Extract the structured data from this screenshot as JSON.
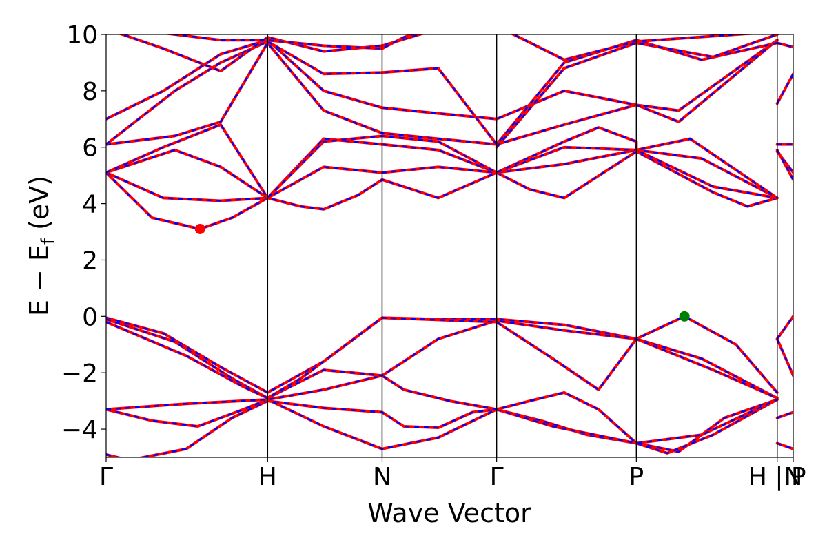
{
  "chart_data": {
    "type": "line",
    "xlabel": "Wave Vector",
    "ylabel_main": "E − E",
    "ylabel_sub": "f",
    "ylabel_unit": "(eV)",
    "ylim": [
      -5,
      10
    ],
    "yticks": [
      {
        "value": -4,
        "label": "−4"
      },
      {
        "value": -2,
        "label": "−2"
      },
      {
        "value": 0,
        "label": "0"
      },
      {
        "value": 2,
        "label": "2"
      },
      {
        "value": 4,
        "label": "4"
      },
      {
        "value": 6,
        "label": "6"
      },
      {
        "value": 8,
        "label": "8"
      },
      {
        "value": 10,
        "label": "10"
      }
    ],
    "xlim": [
      0,
      6
    ],
    "kpoints": [
      {
        "x": 0,
        "label": "Γ"
      },
      {
        "x": 1.41,
        "label": "H"
      },
      {
        "x": 2.41,
        "label": "N"
      },
      {
        "x": 3.41,
        "label": "Γ"
      },
      {
        "x": 4.63,
        "label": "P"
      },
      {
        "x": 5.86,
        "label": "H | P"
      },
      {
        "x": 6,
        "label": "N"
      }
    ],
    "segment_breaks": [
      5.86
    ],
    "series_colors": {
      "calc_a": "#ff0000",
      "calc_b": "#0000ff"
    },
    "bands": [
      [
        [
          0,
          -4.9
        ],
        [
          0.2,
          -5.1
        ],
        [
          0.7,
          -4.7
        ],
        [
          1.1,
          -3.6
        ],
        [
          1.41,
          -3.0
        ],
        [
          1.9,
          -3.25
        ],
        [
          2.41,
          -3.4
        ],
        [
          2.41,
          -3.4
        ],
        [
          2.6,
          -3.9
        ],
        [
          2.9,
          -3.95
        ],
        [
          3.2,
          -3.4
        ],
        [
          3.41,
          -3.3
        ],
        [
          3.41,
          -3.3
        ],
        [
          3.8,
          -3.7
        ],
        [
          4.2,
          -4.2
        ],
        [
          4.63,
          -4.5
        ],
        [
          4.63,
          -4.5
        ],
        [
          5.0,
          -4.8
        ],
        [
          5.4,
          -3.6
        ],
        [
          5.86,
          -2.95
        ],
        [
          5.86,
          -3.6
        ],
        [
          6,
          -3.4
        ]
      ],
      [
        [
          0,
          -3.3
        ],
        [
          0.4,
          -3.7
        ],
        [
          0.8,
          -3.9
        ],
        [
          1.2,
          -3.3
        ],
        [
          1.41,
          -2.95
        ],
        [
          1.9,
          -3.9
        ],
        [
          2.41,
          -4.7
        ],
        [
          2.41,
          -4.7
        ],
        [
          2.9,
          -4.3
        ],
        [
          3.41,
          -3.3
        ],
        [
          3.41,
          -3.3
        ],
        [
          3.9,
          -3.9
        ],
        [
          4.63,
          -4.5
        ],
        [
          4.63,
          -4.5
        ],
        [
          4.9,
          -4.85
        ],
        [
          5.3,
          -4.2
        ],
        [
          5.86,
          -2.95
        ],
        [
          5.86,
          -4.5
        ],
        [
          6,
          -4.7
        ]
      ],
      [
        [
          0,
          -3.3
        ],
        [
          0.7,
          -3.1
        ],
        [
          1.41,
          -2.95
        ],
        [
          1.9,
          -2.6
        ],
        [
          2.41,
          -2.1
        ],
        [
          2.41,
          -2.1
        ],
        [
          2.6,
          -2.6
        ],
        [
          3.0,
          -3.0
        ],
        [
          3.41,
          -3.3
        ],
        [
          3.41,
          -3.3
        ],
        [
          3.7,
          -3.0
        ],
        [
          4.0,
          -2.7
        ],
        [
          4.3,
          -3.3
        ],
        [
          4.63,
          -4.5
        ],
        [
          4.63,
          -4.5
        ],
        [
          5.2,
          -4.2
        ],
        [
          5.86,
          -2.95
        ],
        [
          5.86,
          -0.8
        ],
        [
          6,
          -2.1
        ]
      ],
      [
        [
          0,
          -0.05
        ],
        [
          0.5,
          -0.6
        ],
        [
          1.0,
          -1.8
        ],
        [
          1.41,
          -2.7
        ],
        [
          1.9,
          -1.6
        ],
        [
          2.41,
          -0.05
        ],
        [
          2.41,
          -0.05
        ],
        [
          2.9,
          -0.1
        ],
        [
          3.41,
          -0.1
        ],
        [
          3.41,
          -0.1
        ],
        [
          4.0,
          -0.3
        ],
        [
          4.63,
          -0.8
        ],
        [
          4.63,
          -0.8
        ],
        [
          5.05,
          0.0
        ],
        [
          5.5,
          -1.0
        ],
        [
          5.86,
          -2.7
        ],
        [
          5.86,
          -0.8
        ],
        [
          6,
          0.0
        ]
      ],
      [
        [
          0,
          -0.1
        ],
        [
          0.6,
          -0.9
        ],
        [
          1.1,
          -2.2
        ],
        [
          1.41,
          -2.9
        ],
        [
          1.9,
          -1.9
        ],
        [
          2.41,
          -2.1
        ],
        [
          2.41,
          -2.1
        ],
        [
          2.9,
          -0.8
        ],
        [
          3.41,
          -0.15
        ],
        [
          3.41,
          -0.15
        ],
        [
          4.0,
          -0.5
        ],
        [
          4.63,
          -0.8
        ],
        [
          4.63,
          -0.8
        ],
        [
          5.2,
          -1.5
        ],
        [
          5.86,
          -2.9
        ]
      ],
      [
        [
          0,
          -0.2
        ],
        [
          0.7,
          -1.4
        ],
        [
          1.2,
          -2.5
        ],
        [
          1.41,
          -2.9
        ],
        [
          1.7,
          -2.2
        ],
        [
          2.41,
          -0.05
        ],
        [
          2.41,
          -0.05
        ],
        [
          3.41,
          -0.2
        ],
        [
          3.41,
          -0.2
        ],
        [
          3.9,
          -1.5
        ],
        [
          4.3,
          -2.6
        ],
        [
          4.63,
          -0.8
        ],
        [
          4.63,
          -0.8
        ],
        [
          5.3,
          -1.9
        ],
        [
          5.86,
          -2.9
        ]
      ],
      [
        [
          0,
          5.1
        ],
        [
          0.4,
          3.5
        ],
        [
          0.82,
          3.1
        ],
        [
          1.1,
          3.5
        ],
        [
          1.41,
          4.2
        ],
        [
          1.7,
          3.9
        ],
        [
          1.9,
          3.8
        ],
        [
          2.2,
          4.3
        ],
        [
          2.41,
          4.85
        ],
        [
          2.41,
          4.85
        ],
        [
          2.9,
          4.2
        ],
        [
          3.41,
          5.1
        ],
        [
          3.41,
          5.1
        ],
        [
          3.7,
          4.5
        ],
        [
          4.0,
          4.2
        ],
        [
          4.63,
          5.85
        ],
        [
          4.63,
          5.85
        ],
        [
          5.3,
          4.4
        ],
        [
          5.6,
          3.9
        ],
        [
          5.86,
          4.2
        ]
      ],
      [
        [
          0,
          5.1
        ],
        [
          0.5,
          4.2
        ],
        [
          1.0,
          4.1
        ],
        [
          1.41,
          4.2
        ],
        [
          1.9,
          5.3
        ],
        [
          2.41,
          5.1
        ],
        [
          2.41,
          5.1
        ],
        [
          2.9,
          5.3
        ],
        [
          3.41,
          5.1
        ],
        [
          3.41,
          5.1
        ],
        [
          4.0,
          5.4
        ],
        [
          4.63,
          5.9
        ],
        [
          4.63,
          5.9
        ],
        [
          5.3,
          4.6
        ],
        [
          5.86,
          4.2
        ]
      ],
      [
        [
          0,
          5.1
        ],
        [
          0.6,
          5.9
        ],
        [
          1.0,
          5.3
        ],
        [
          1.41,
          4.2
        ],
        [
          1.9,
          6.3
        ],
        [
          2.41,
          6.1
        ],
        [
          2.41,
          6.1
        ],
        [
          2.9,
          5.9
        ],
        [
          3.41,
          5.1
        ],
        [
          3.41,
          5.1
        ],
        [
          4.0,
          6.0
        ],
        [
          4.63,
          5.9
        ],
        [
          4.63,
          5.9
        ],
        [
          5.2,
          5.6
        ],
        [
          5.86,
          4.2
        ],
        [
          5.86,
          5.85
        ],
        [
          6,
          5.1
        ]
      ],
      [
        [
          0,
          5.1
        ],
        [
          0.5,
          6.0
        ],
        [
          1.0,
          6.8
        ],
        [
          1.41,
          4.2
        ],
        [
          1.9,
          6.2
        ],
        [
          2.41,
          6.4
        ],
        [
          2.41,
          6.4
        ],
        [
          2.9,
          6.2
        ],
        [
          3.41,
          5.1
        ],
        [
          3.41,
          5.1
        ],
        [
          4.0,
          6.2
        ],
        [
          4.3,
          6.7
        ],
        [
          4.63,
          6.2
        ],
        [
          4.63,
          5.9
        ],
        [
          5.1,
          6.3
        ],
        [
          5.86,
          4.2
        ],
        [
          5.86,
          5.9
        ],
        [
          6,
          4.85
        ]
      ],
      [
        [
          0,
          6.1
        ],
        [
          0.6,
          6.4
        ],
        [
          1.0,
          6.9
        ],
        [
          1.41,
          9.7
        ],
        [
          1.9,
          7.3
        ],
        [
          2.41,
          6.5
        ],
        [
          2.41,
          6.5
        ],
        [
          2.9,
          6.3
        ],
        [
          3.41,
          6.1
        ],
        [
          3.41,
          6.1
        ],
        [
          4.0,
          6.8
        ],
        [
          4.63,
          7.5
        ],
        [
          4.63,
          7.5
        ],
        [
          5.0,
          7.3
        ],
        [
          5.86,
          9.8
        ],
        [
          5.86,
          6.1
        ],
        [
          6,
          6.1
        ]
      ],
      [
        [
          0,
          7.0
        ],
        [
          0.5,
          8.0
        ],
        [
          1.0,
          9.3
        ],
        [
          1.41,
          9.8
        ],
        [
          1.9,
          8.0
        ],
        [
          2.41,
          7.4
        ],
        [
          2.41,
          7.4
        ],
        [
          2.9,
          7.2
        ],
        [
          3.41,
          7.0
        ],
        [
          3.41,
          7.0
        ],
        [
          4.0,
          8.0
        ],
        [
          4.63,
          7.5
        ],
        [
          4.63,
          7.5
        ],
        [
          5.0,
          6.9
        ],
        [
          5.86,
          9.8
        ],
        [
          5.86,
          7.55
        ],
        [
          6,
          8.6
        ]
      ],
      [
        [
          0,
          6.1
        ],
        [
          0.6,
          8.0
        ],
        [
          1.0,
          9.0
        ],
        [
          1.41,
          9.75
        ],
        [
          1.9,
          8.6
        ],
        [
          2.41,
          8.65
        ],
        [
          2.41,
          8.65
        ],
        [
          2.9,
          8.8
        ],
        [
          3.41,
          6.1
        ],
        [
          3.41,
          6.1
        ],
        [
          4.0,
          9.0
        ],
        [
          4.63,
          9.8
        ],
        [
          4.63,
          9.8
        ],
        [
          5.2,
          9.1
        ],
        [
          5.86,
          9.7
        ],
        [
          5.86,
          9.7
        ],
        [
          6,
          9.55
        ]
      ],
      [
        [
          0,
          10.2
        ],
        [
          0.5,
          9.5
        ],
        [
          1.0,
          8.7
        ],
        [
          1.41,
          9.9
        ],
        [
          1.9,
          9.4
        ],
        [
          2.41,
          9.6
        ],
        [
          2.41,
          9.6
        ],
        [
          2.9,
          10.2
        ],
        [
          3.41,
          10.3
        ],
        [
          3.41,
          10.3
        ],
        [
          4.0,
          9.1
        ],
        [
          4.63,
          9.75
        ],
        [
          4.63,
          9.75
        ],
        [
          5.86,
          10.1
        ]
      ],
      [
        [
          0,
          10.3
        ],
        [
          1.0,
          9.8
        ],
        [
          1.41,
          9.8
        ],
        [
          1.9,
          9.6
        ],
        [
          2.41,
          9.5
        ],
        [
          2.6,
          9.9
        ],
        [
          3.41,
          11.0
        ]
      ],
      [
        [
          3.41,
          6.0
        ],
        [
          4.0,
          8.8
        ],
        [
          4.63,
          9.7
        ],
        [
          5.3,
          9.2
        ],
        [
          5.86,
          10.0
        ],
        [
          6,
          10.5
        ]
      ]
    ],
    "extrema": [
      {
        "x": 0.82,
        "y": 3.1,
        "color": "#ff0000",
        "kind": "CBM"
      },
      {
        "x": 5.05,
        "y": 0.0,
        "color": "#008000",
        "kind": "VBM"
      }
    ]
  }
}
